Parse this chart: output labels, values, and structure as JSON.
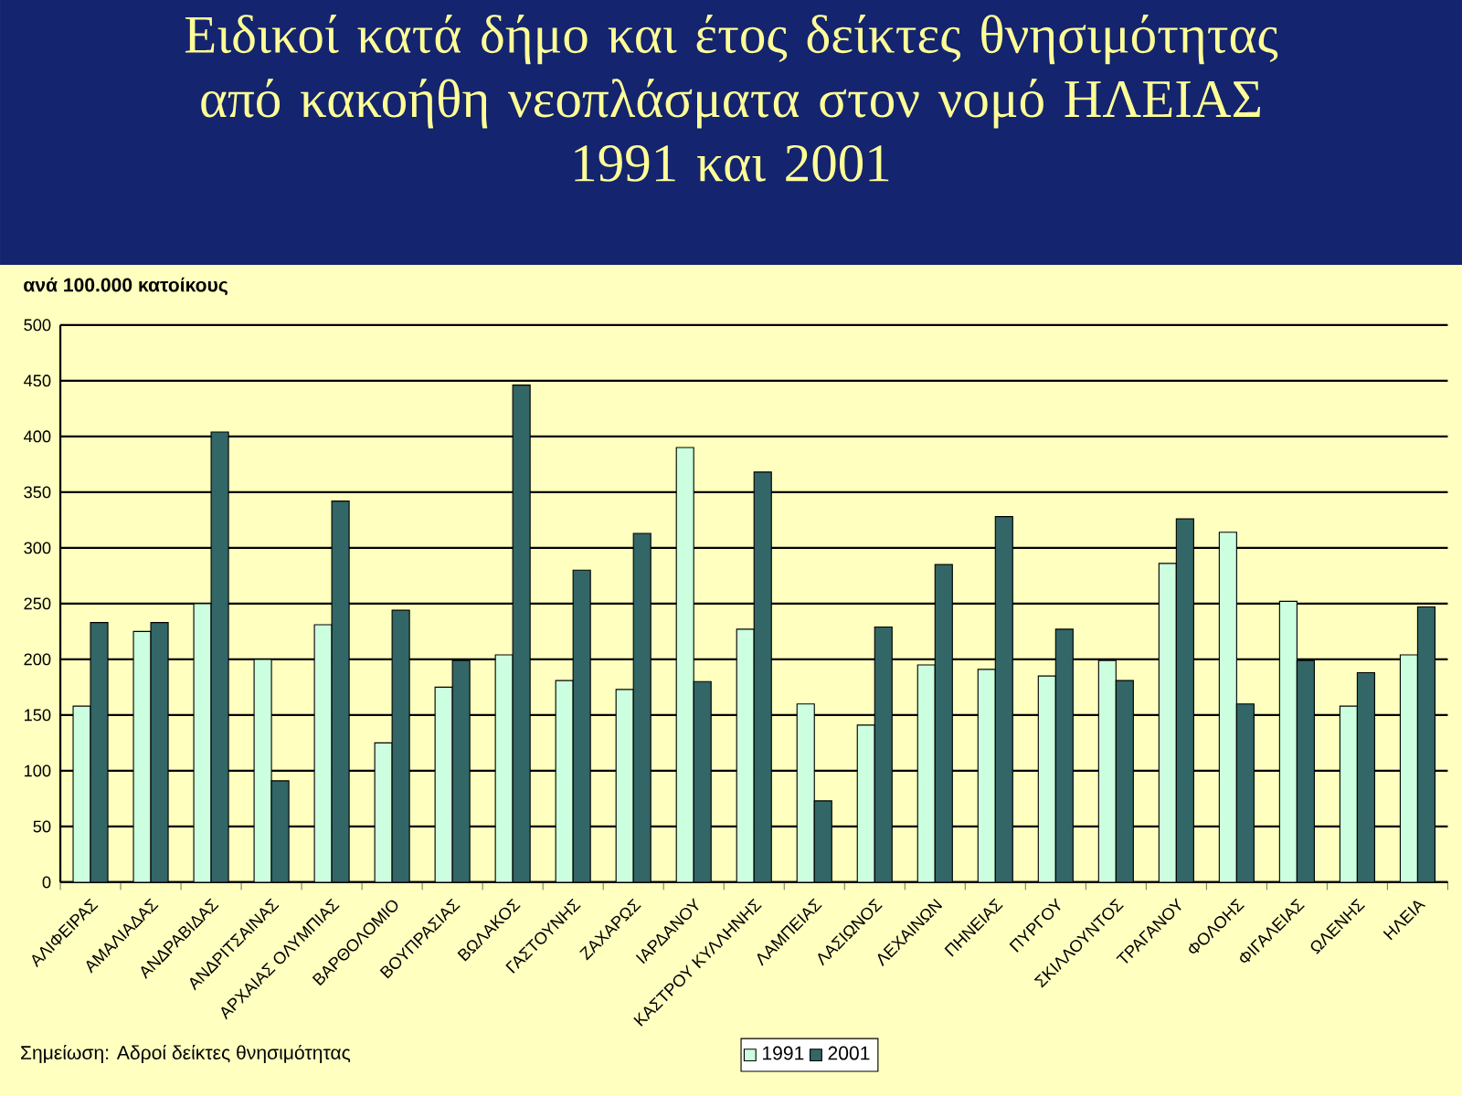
{
  "chart_data": {
    "type": "bar",
    "title": "Ειδικοί κατά δήμο και έτος δείκτες θνησιμότητας  από κακοήθη νεοπλάσματα στον νομό ΗΛΕΙΑΣ",
    "subtitle": "1991 και 2001",
    "ylabel": "ανά 100.000 κατοίκους",
    "annotations": [
      "Σημείωση: Αδροί δείκτες θνησιμότητας"
    ],
    "categories": [
      "ΑΛΙΦΕΙΡΑΣ",
      "ΑΜΑΛΙΑΔΑΣ",
      "ΑΝΔΡΑΒΙΔΑΣ",
      "ΑΝΔΡΙΤΣΑΙΝΑΣ",
      "ΑΡΧΑΙΑΣ ΟΛΥΜΠΙΑΣ",
      "ΒΑΡΘΟΛΟΜΙΟ",
      "ΒΟΥΠΡΑΣΙΑΣ",
      "ΒΩΛΑΚΟΣ",
      "ΓΑΣΤΟΥΝΗΣ",
      "ΖΑΧΑΡΩΣ",
      "ΙΑΡΔΑΝΟΥ",
      "ΚΑΣΤΡΟΥ ΚΥΛΛΗΝΗΣ",
      "ΛΑΜΠΕΙΑΣ",
      "ΛΑΣΙΩΝΟΣ",
      "ΛΕΧΑΙΝΩΝ",
      "ΠΗΝΕΙΑΣ",
      "ΠΥΡΓΟΥ",
      "ΣΚΙΛΛΟΥΝΤΟΣ",
      "ΤΡΑΓΑΝΟΥ",
      "ΦΟΛΟΗΣ",
      "ΦΙΓΑΛΕΙΑΣ",
      "ΩΛΕΝΗΣ",
      "ΗΛΕΙΑ"
    ],
    "series": [
      {
        "name": "1991",
        "color": "#ccffe0",
        "values": [
          158,
          225,
          250,
          200,
          231,
          125,
          175,
          204,
          181,
          173,
          390,
          227,
          160,
          141,
          195,
          191,
          185,
          199,
          286,
          314,
          252,
          158,
          204
        ]
      },
      {
        "name": "2001",
        "color": "#336666",
        "values": [
          233,
          233,
          404,
          91,
          342,
          244,
          199,
          446,
          280,
          313,
          180,
          368,
          73,
          229,
          285,
          328,
          227,
          181,
          326,
          160,
          199,
          188,
          247
        ]
      }
    ],
    "ylim": [
      0,
      500
    ],
    "yticks": [
      0,
      50,
      100,
      150,
      200,
      250,
      300,
      350,
      400,
      450,
      500
    ],
    "grid": "y",
    "legend": "bottom"
  }
}
